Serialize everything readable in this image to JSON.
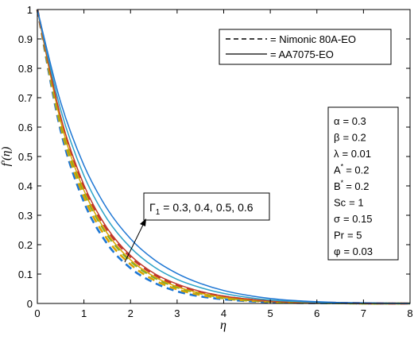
{
  "chart_data": {
    "type": "line",
    "xlabel": "η",
    "ylabel": "f'(η)",
    "xlim": [
      0,
      8
    ],
    "ylim": [
      0,
      1
    ],
    "xticks": [
      "0",
      "1",
      "2",
      "3",
      "4",
      "5",
      "6",
      "7",
      "8"
    ],
    "yticks": [
      "0",
      "0.1",
      "0.2",
      "0.3",
      "0.4",
      "0.5",
      "0.6",
      "0.7",
      "0.8",
      "0.9",
      "1"
    ],
    "grid": false,
    "legend": {
      "placement": "top-right",
      "entries": [
        {
          "label": "= Nimonic 80A-EO",
          "style": "dashed",
          "color": "#000000"
        },
        {
          "label": "= AA7075-EO",
          "style": "solid",
          "color": "#000000"
        }
      ]
    },
    "parameters": [
      {
        "symbol": "α",
        "sup": "",
        "value": "= 0.3"
      },
      {
        "symbol": "β",
        "sup": "",
        "value": "= 0.2"
      },
      {
        "symbol": "λ",
        "sup": "",
        "value": "= 0.01"
      },
      {
        "symbol": "A",
        "sup": "*",
        "value": "= 0.2"
      },
      {
        "symbol": "B",
        "sup": "*",
        "value": "= 0.2"
      },
      {
        "symbol": "Sc",
        "sup": "",
        "value": "= 1"
      },
      {
        "symbol": "σ",
        "sup": "",
        "value": "= 0.15"
      },
      {
        "symbol": "Pr",
        "sup": "",
        "value": "= 5"
      },
      {
        "symbol": "φ",
        "sup": "",
        "value": "= 0.03"
      }
    ],
    "annotation": {
      "symbol": "Γ",
      "subscript": "1",
      "text": "= 0.3, 0.4, 0.5, 0.6"
    },
    "x": [
      0,
      0.5,
      1,
      1.5,
      2,
      2.5,
      3,
      3.5,
      4,
      4.5,
      5,
      5.5,
      6,
      6.5,
      7,
      7.5,
      8
    ],
    "series": [
      {
        "group": "Nimonic 80A-EO",
        "style": "dashed",
        "color": "#1f77d4",
        "gamma": 0.3,
        "values": [
          1,
          0.588,
          0.345,
          0.203,
          0.12,
          0.071,
          0.041,
          0.024,
          0.014,
          0.008,
          0.004,
          0.002,
          0.001,
          0.001,
          0,
          0,
          0
        ]
      },
      {
        "group": "Nimonic 80A-EO",
        "style": "dashed",
        "color": "#d9a400",
        "gamma": 0.4,
        "values": [
          1,
          0.603,
          0.363,
          0.219,
          0.133,
          0.08,
          0.048,
          0.029,
          0.017,
          0.01,
          0.006,
          0.003,
          0.002,
          0.001,
          0,
          0,
          0
        ]
      },
      {
        "group": "Nimonic 80A-EO",
        "style": "dashed",
        "color": "#77ac30",
        "gamma": 0.5,
        "values": [
          1,
          0.616,
          0.38,
          0.234,
          0.144,
          0.089,
          0.055,
          0.034,
          0.02,
          0.012,
          0.007,
          0.004,
          0.002,
          0.001,
          0,
          0,
          0
        ]
      },
      {
        "group": "Nimonic 80A-EO",
        "style": "dashed",
        "color": "#c0392b",
        "gamma": 0.6,
        "values": [
          1,
          0.63,
          0.397,
          0.25,
          0.158,
          0.099,
          0.062,
          0.039,
          0.024,
          0.014,
          0.008,
          0.005,
          0.003,
          0.002,
          0.001,
          0,
          0
        ]
      },
      {
        "group": "AA7075-EO",
        "style": "solid",
        "color": "#d9a400",
        "gamma": 0.3,
        "values": [
          1,
          0.62,
          0.385,
          0.239,
          0.148,
          0.092,
          0.057,
          0.035,
          0.021,
          0.013,
          0.008,
          0.005,
          0.003,
          0.002,
          0.001,
          0,
          0
        ]
      },
      {
        "group": "AA7075-EO",
        "style": "solid",
        "color": "#c0392b",
        "gamma": 0.4,
        "values": [
          1,
          0.635,
          0.403,
          0.256,
          0.163,
          0.103,
          0.066,
          0.041,
          0.025,
          0.015,
          0.009,
          0.006,
          0.003,
          0.002,
          0.001,
          0,
          0
        ]
      },
      {
        "group": "AA7075-EO",
        "style": "solid",
        "color": "#2ea3c7",
        "gamma": 0.5,
        "values": [
          1,
          0.66,
          0.435,
          0.287,
          0.19,
          0.125,
          0.082,
          0.054,
          0.034,
          0.021,
          0.012,
          0.007,
          0.004,
          0.002,
          0.001,
          0,
          0
        ]
      },
      {
        "group": "AA7075-EO",
        "style": "solid",
        "color": "#1f77d4",
        "gamma": 0.6,
        "values": [
          1,
          0.685,
          0.47,
          0.322,
          0.22,
          0.15,
          0.102,
          0.068,
          0.044,
          0.028,
          0.017,
          0.01,
          0.006,
          0.003,
          0.002,
          0.001,
          0
        ]
      }
    ]
  }
}
